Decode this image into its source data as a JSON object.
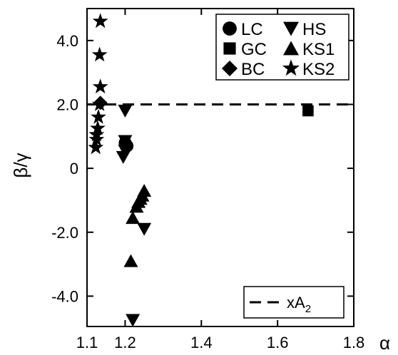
{
  "chart_data": {
    "type": "scatter",
    "title": "",
    "xlabel": "α",
    "ylabel": "β/γ",
    "xlim": [
      1.1,
      1.8
    ],
    "ylim": [
      -4.95,
      5.0
    ],
    "x_ticks": [
      1.1,
      1.2,
      1.4,
      1.6,
      1.8
    ],
    "x_tick_labels": [
      "1.1",
      "1.2",
      "1.4",
      "1.6",
      "1.8"
    ],
    "y_ticks": [
      4.0,
      2.0,
      0,
      -2.0,
      -4.0
    ],
    "y_tick_labels": [
      "4.0",
      "2.0",
      "0",
      "-2.0",
      "-4.0"
    ],
    "grid": false,
    "legend_position": "top-right",
    "reference_line": {
      "name": "xA",
      "subscript": "2",
      "y": 2.0,
      "style": "dashed",
      "legend_position": "bottom-right"
    },
    "series": [
      {
        "name": "LC",
        "marker": "circle",
        "points": [
          [
            1.2,
            0.8
          ],
          [
            1.205,
            0.7
          ]
        ]
      },
      {
        "name": "GC",
        "marker": "square",
        "points": [
          [
            1.68,
            1.8
          ]
        ]
      },
      {
        "name": "BC",
        "marker": "diamond",
        "points": [
          [
            1.135,
            2.05
          ]
        ]
      },
      {
        "name": "HS",
        "marker": "triangle-down",
        "points": [
          [
            1.2,
            1.8
          ],
          [
            1.2,
            0.85
          ],
          [
            1.2,
            0.55
          ],
          [
            1.195,
            0.35
          ],
          [
            1.25,
            -1.9
          ],
          [
            1.22,
            -4.75
          ]
        ]
      },
      {
        "name": "KS1",
        "marker": "triangle-up",
        "points": [
          [
            1.22,
            -1.55
          ],
          [
            1.23,
            -1.2
          ],
          [
            1.235,
            -1.05
          ],
          [
            1.24,
            -0.95
          ],
          [
            1.245,
            -0.85
          ],
          [
            1.25,
            -0.7
          ],
          [
            1.215,
            -2.9
          ]
        ]
      },
      {
        "name": "KS2",
        "marker": "star",
        "points": [
          [
            1.135,
            4.6
          ],
          [
            1.133,
            3.55
          ],
          [
            1.135,
            2.55
          ],
          [
            1.133,
            2.0
          ],
          [
            1.13,
            1.6
          ],
          [
            1.128,
            1.25
          ],
          [
            1.125,
            1.05
          ],
          [
            1.125,
            0.9
          ],
          [
            1.123,
            0.65
          ]
        ]
      }
    ]
  }
}
